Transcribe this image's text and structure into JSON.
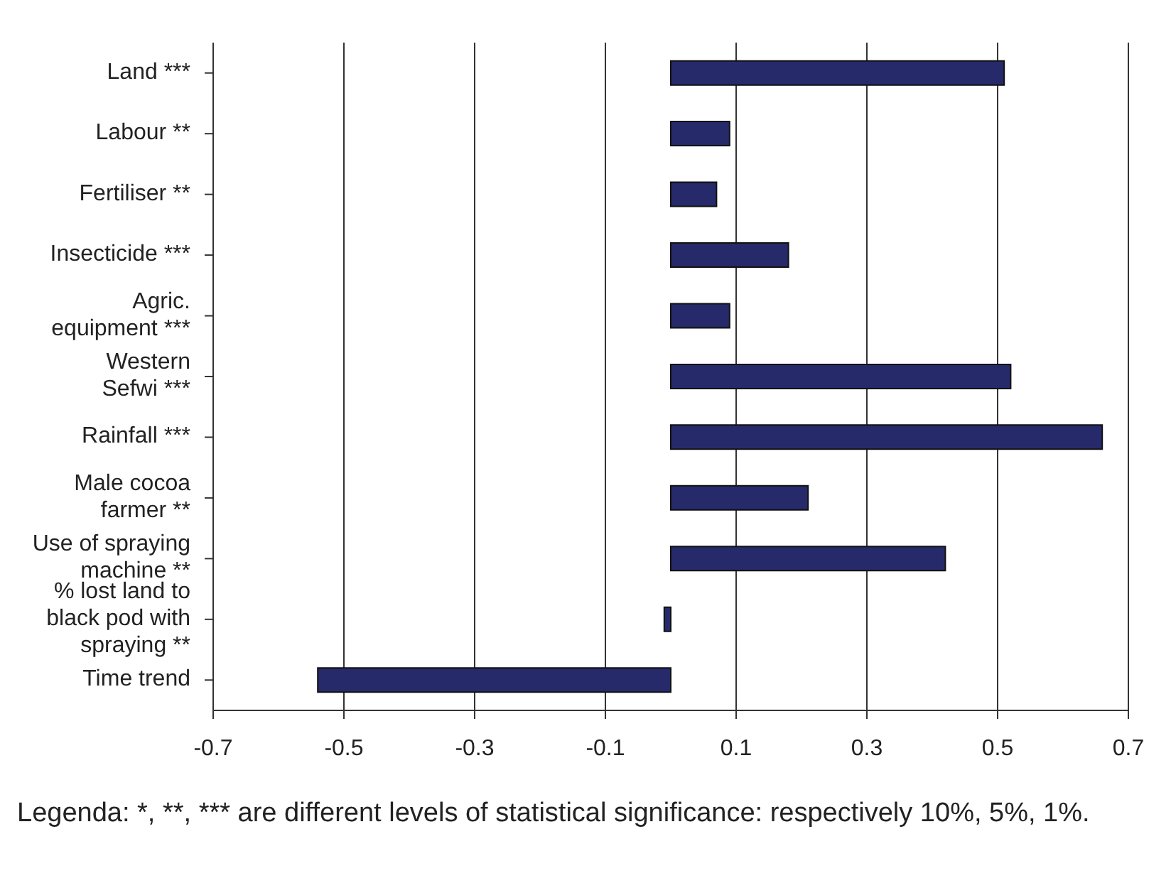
{
  "chart_data": {
    "type": "bar",
    "orientation": "horizontal",
    "categories": [
      "Land ***",
      "Labour **",
      "Fertiliser **",
      "Insecticide ***",
      "Agric. equipment ***",
      "Western Sefwi ***",
      "Rainfall ***",
      "Male cocoa farmer **",
      "Use of spraying machine **",
      "% lost land to black pod with spraying **",
      "Time trend"
    ],
    "values": [
      0.51,
      0.09,
      0.07,
      0.18,
      0.09,
      0.52,
      0.66,
      0.21,
      0.42,
      -0.01,
      -0.54
    ],
    "color": "#262a6b",
    "xlim": [
      -0.7,
      0.7
    ],
    "xticks": [
      -0.7,
      -0.5,
      -0.3,
      -0.1,
      0.1,
      0.3,
      0.5,
      0.7
    ],
    "grid": "x",
    "annotations": [
      "Legenda: *, **, *** are different levels of statistical significance: respectively 10%, 5%, 1%."
    ]
  }
}
